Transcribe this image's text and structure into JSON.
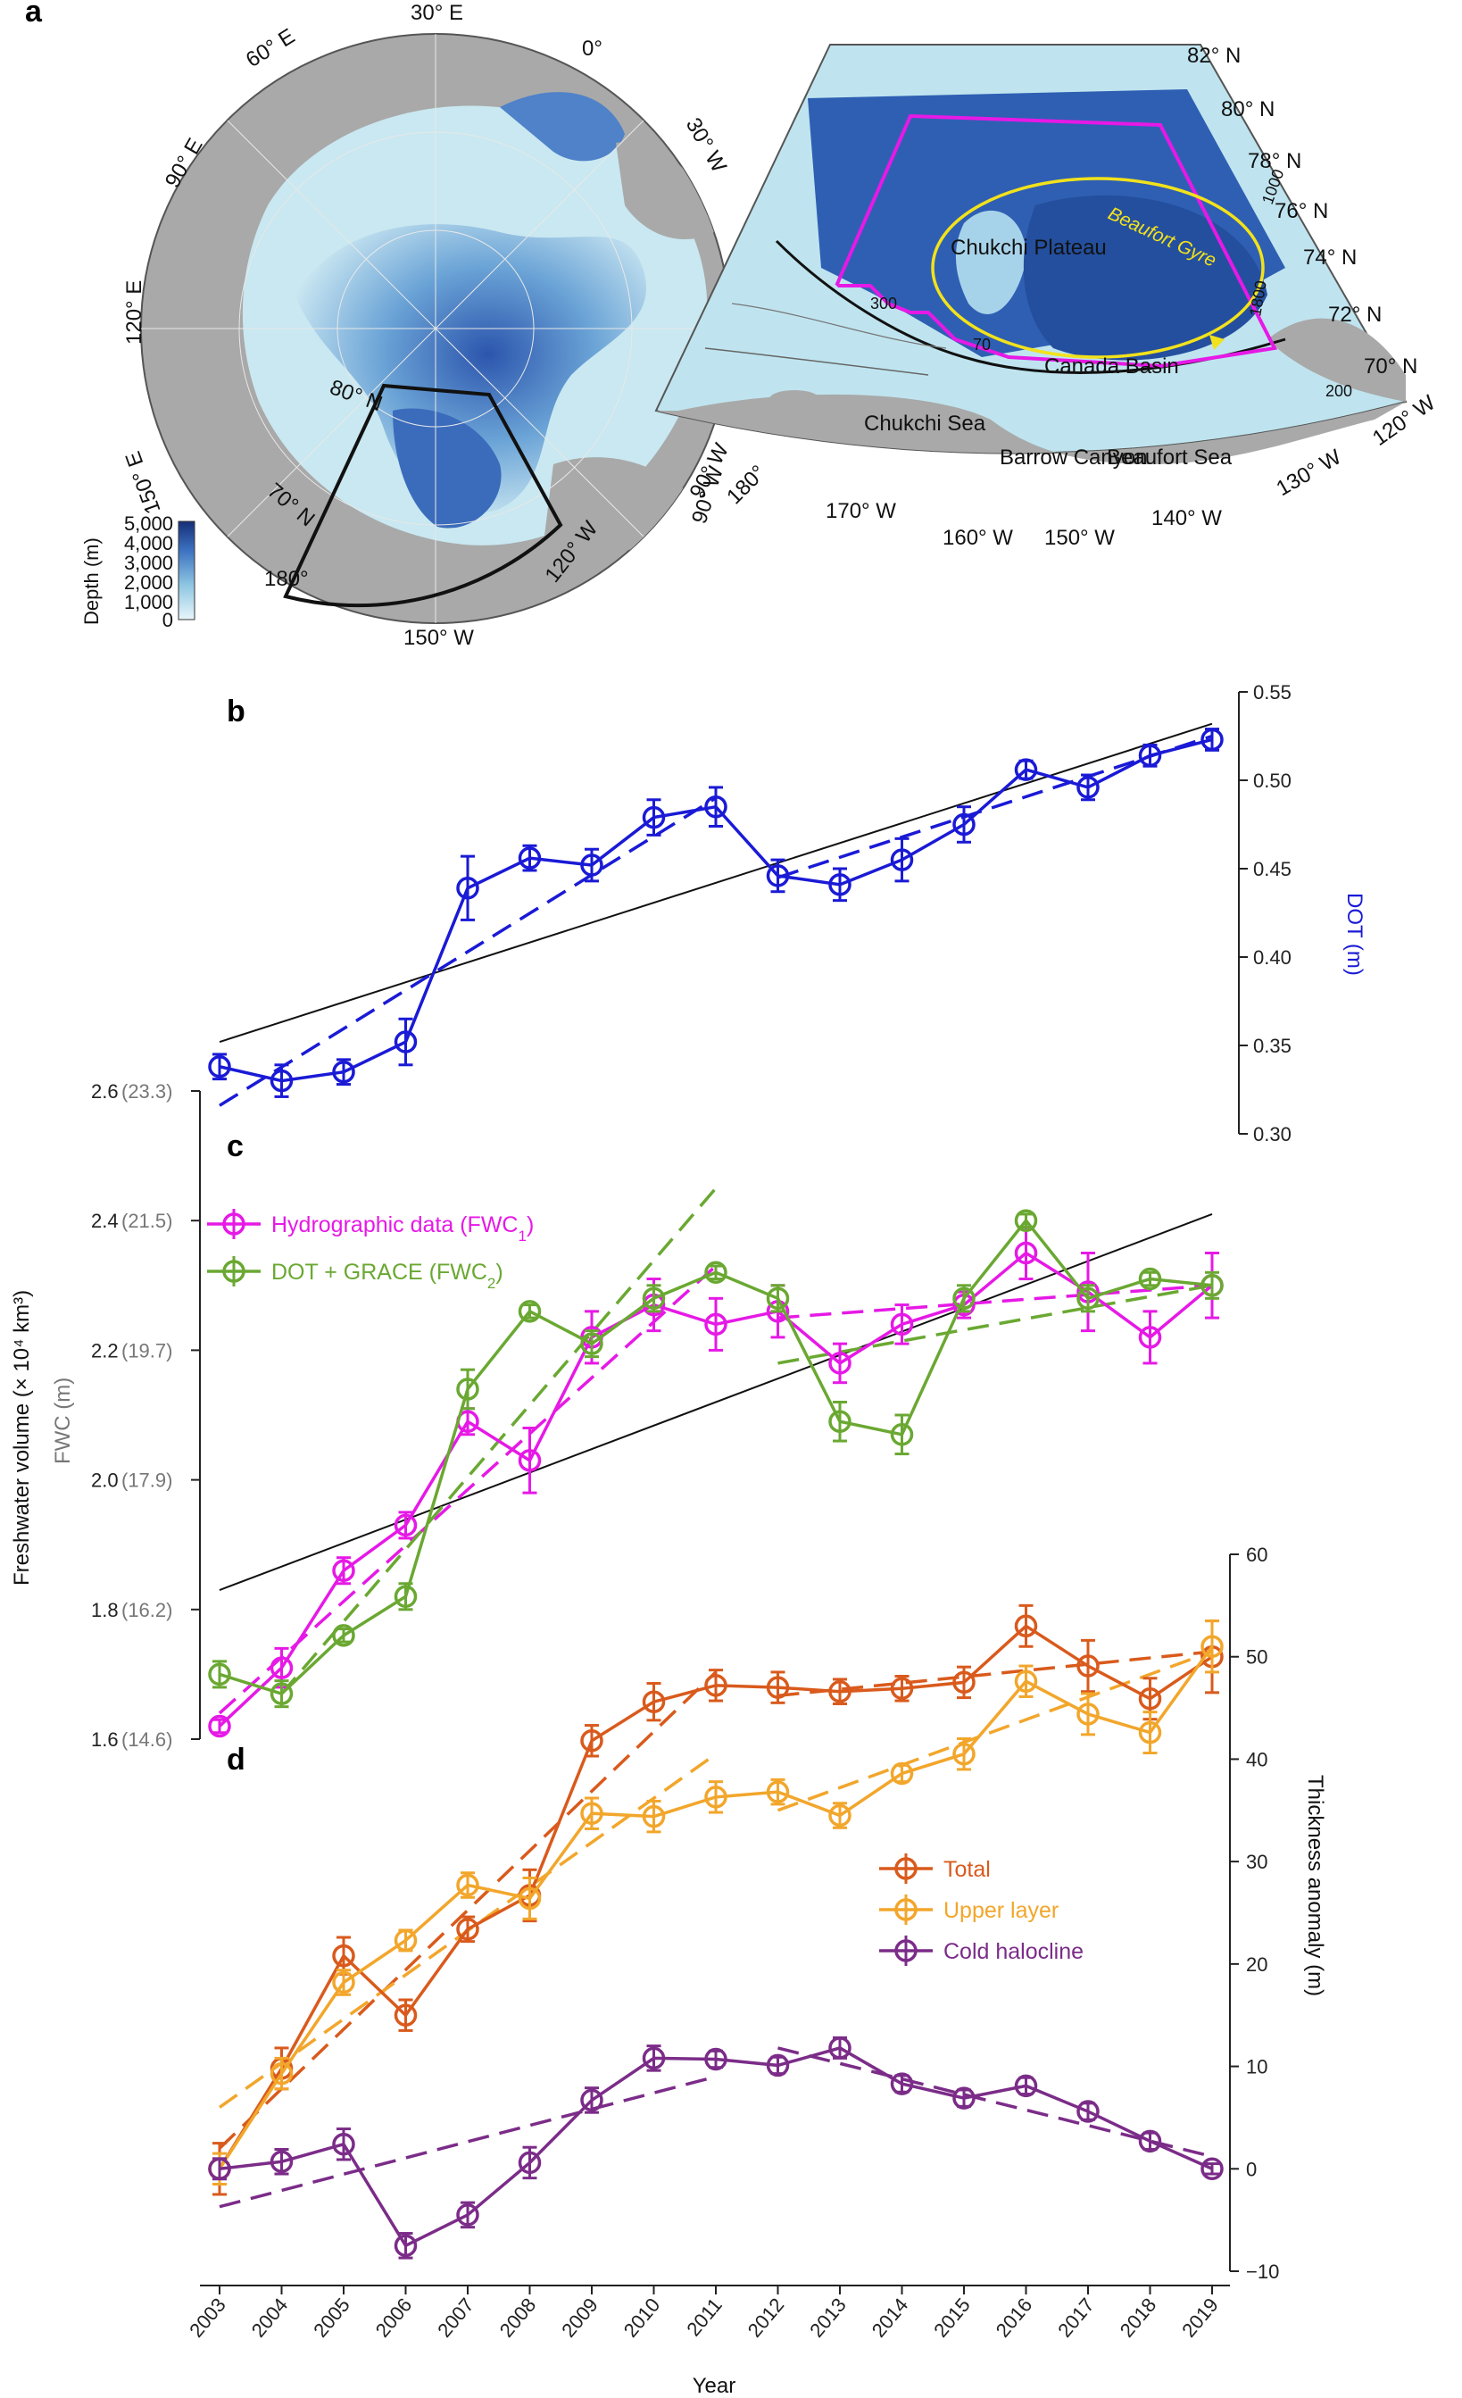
{
  "panel_a": {
    "label": "a",
    "polar_lon_labels": [
      "30° E",
      "0°",
      "60° E",
      "30° W",
      "90° E",
      "120° E",
      "150° E",
      "180°",
      "150° W",
      "120° W",
      "90° W"
    ],
    "polar_lat_labels": [
      "80° N",
      "70° N"
    ],
    "depth_colorbar": {
      "title": "Depth (m)",
      "ticks": [
        "5,000",
        "4,000",
        "3,000",
        "2,000",
        "1,000",
        "0"
      ]
    },
    "inset_lat_labels": [
      "82° N",
      "80° N",
      "78° N",
      "76° N",
      "74° N",
      "72° N",
      "70° N"
    ],
    "inset_lon_labels": [
      "90° W",
      "180°",
      "170° W",
      "160° W",
      "150° W",
      "140° W",
      "130° W",
      "120° W"
    ],
    "region_labels": [
      "Chukchi Plateau",
      "Beaufort Gyre",
      "Canada Basin",
      "Chukchi Sea",
      "Barrow Canyon",
      "Beaufort Sea"
    ],
    "contour_labels": [
      "300",
      "1000",
      "1800",
      "200",
      "70"
    ]
  },
  "chart_data": [
    {
      "type": "line",
      "panel": "b",
      "ylabel": "DOT (m)",
      "ylim": [
        0.3,
        0.55
      ],
      "yticks": [
        "0.30",
        "0.35",
        "0.40",
        "0.45",
        "0.50",
        "0.55"
      ],
      "x": [
        2003,
        2004,
        2005,
        2006,
        2007,
        2008,
        2009,
        2010,
        2011,
        2012,
        2013,
        2014,
        2015,
        2016,
        2017,
        2018,
        2019
      ],
      "series": [
        {
          "name": "DOT",
          "color": "#1a1ad6",
          "values": [
            0.338,
            0.33,
            0.335,
            0.352,
            0.439,
            0.456,
            0.452,
            0.479,
            0.485,
            0.446,
            0.441,
            0.455,
            0.475,
            0.506,
            0.496,
            0.514,
            0.523
          ],
          "errors": [
            0.007,
            0.009,
            0.007,
            0.013,
            0.018,
            0.007,
            0.009,
            0.01,
            0.011,
            0.009,
            0.009,
            0.012,
            0.01,
            0.005,
            0.007,
            0.006,
            0.006
          ]
        }
      ],
      "trend_overall": {
        "x": [
          2003,
          2019
        ],
        "y": [
          0.352,
          0.532
        ]
      },
      "trend_segments": [
        {
          "x": [
            2003,
            2011
          ],
          "y": [
            0.316,
            0.49
          ]
        },
        {
          "x": [
            2012,
            2019
          ],
          "y": [
            0.445,
            0.525
          ]
        }
      ]
    },
    {
      "type": "line",
      "panel": "c",
      "ylabel": "Freshwater volume (× 10⁴ km³)",
      "ylabel2": "FWC (m)",
      "ylim": [
        1.6,
        2.6
      ],
      "yticks": [
        "1.6",
        "1.8",
        "2.0",
        "2.2",
        "2.4",
        "2.6"
      ],
      "yticks_fwc": [
        "(14.6)",
        "(16.2)",
        "(17.9)",
        "(19.7)",
        "(21.5)",
        "(23.3)"
      ],
      "x": [
        2003,
        2004,
        2005,
        2006,
        2007,
        2008,
        2009,
        2010,
        2011,
        2012,
        2013,
        2014,
        2015,
        2016,
        2017,
        2018,
        2019
      ],
      "series": [
        {
          "name": "Hydrographic data (FWC1)",
          "color": "#e619e6",
          "values": [
            1.62,
            1.71,
            1.86,
            1.93,
            2.09,
            2.03,
            2.22,
            2.27,
            2.24,
            2.26,
            2.18,
            2.24,
            2.27,
            2.35,
            2.29,
            2.22,
            2.3
          ],
          "errors": [
            0.01,
            0.03,
            0.02,
            0.02,
            0.02,
            0.05,
            0.04,
            0.04,
            0.04,
            0.04,
            0.03,
            0.03,
            0.02,
            0.04,
            0.06,
            0.04,
            0.05
          ]
        },
        {
          "name": "DOT + GRACE (FWC2)",
          "color": "#6aa832",
          "values": [
            1.7,
            1.67,
            1.76,
            1.82,
            2.14,
            2.26,
            2.21,
            2.28,
            2.32,
            2.28,
            2.09,
            2.07,
            2.28,
            2.4,
            2.28,
            2.31,
            2.3
          ],
          "errors": [
            0.02,
            0.02,
            0.01,
            0.02,
            0.03,
            0.01,
            0.02,
            0.02,
            0.01,
            0.02,
            0.03,
            0.03,
            0.02,
            0.01,
            0.02,
            0.01,
            0.02
          ]
        }
      ],
      "trend_overall": {
        "x": [
          2003,
          2019
        ],
        "y": [
          1.83,
          2.41
        ]
      },
      "trend_segments": [
        {
          "color": "#e619e6",
          "x": [
            2003,
            2011
          ],
          "y": [
            1.64,
            2.33
          ]
        },
        {
          "color": "#e619e6",
          "x": [
            2012,
            2019
          ],
          "y": [
            2.25,
            2.3
          ]
        },
        {
          "color": "#6aa832",
          "x": [
            2004,
            2011
          ],
          "y": [
            1.67,
            2.45
          ]
        },
        {
          "color": "#6aa832",
          "x": [
            2012,
            2019
          ],
          "y": [
            2.18,
            2.3
          ]
        }
      ],
      "legend": {
        "position": "top-left"
      }
    },
    {
      "type": "line",
      "panel": "d",
      "ylabel": "Thickness anomaly (m)",
      "xlabel": "Year",
      "ylim": [
        -10,
        60
      ],
      "yticks": [
        "−10",
        "0",
        "10",
        "20",
        "30",
        "40",
        "50",
        "60"
      ],
      "x": [
        2003,
        2004,
        2005,
        2006,
        2007,
        2008,
        2009,
        2010,
        2011,
        2012,
        2013,
        2014,
        2015,
        2016,
        2017,
        2018,
        2019
      ],
      "series": [
        {
          "name": "Total",
          "color": "#d95a1c",
          "values": [
            0.0,
            9.8,
            20.8,
            15.0,
            23.4,
            26.7,
            41.8,
            45.6,
            47.2,
            47.0,
            46.6,
            46.9,
            47.5,
            53.0,
            49.1,
            45.9,
            50.0
          ],
          "errors": [
            2.5,
            2.0,
            1.8,
            1.5,
            1.2,
            2.5,
            1.5,
            1.8,
            1.5,
            1.5,
            1.2,
            1.2,
            1.5,
            2.0,
            2.5,
            2.0,
            3.5
          ]
        },
        {
          "name": "Upper layer",
          "color": "#f2a62b",
          "values": [
            0.0,
            9.3,
            18.2,
            22.3,
            27.7,
            26.4,
            34.7,
            34.4,
            36.3,
            36.8,
            34.5,
            38.6,
            40.5,
            47.6,
            44.4,
            42.6,
            51.0
          ],
          "errors": [
            1.5,
            1.5,
            1.2,
            1.0,
            1.2,
            2.0,
            1.5,
            1.5,
            1.5,
            1.2,
            1.2,
            0.8,
            1.5,
            1.5,
            2.0,
            2.0,
            2.5
          ]
        },
        {
          "name": "Cold halocline",
          "color": "#7b2c88",
          "values": [
            0.0,
            0.7,
            2.4,
            -7.5,
            -4.5,
            0.6,
            6.7,
            10.8,
            10.7,
            10.1,
            11.8,
            8.3,
            6.9,
            8.1,
            5.6,
            2.7,
            0.0
          ],
          "errors": [
            1.0,
            1.2,
            1.5,
            1.2,
            1.2,
            1.5,
            1.2,
            1.2,
            0.8,
            0.8,
            1.0,
            0.8,
            0.8,
            0.8,
            0.8,
            0.8,
            0.5
          ]
        }
      ],
      "trend_segments": [
        {
          "color": "#d95a1c",
          "x": [
            2003,
            2011
          ],
          "y": [
            2.0,
            48.5
          ]
        },
        {
          "color": "#d95a1c",
          "x": [
            2012,
            2019
          ],
          "y": [
            46.2,
            50.5
          ]
        },
        {
          "color": "#f2a62b",
          "x": [
            2003,
            2011
          ],
          "y": [
            6.0,
            40.5
          ]
        },
        {
          "color": "#f2a62b",
          "x": [
            2012,
            2019
          ],
          "y": [
            35.0,
            50.5
          ]
        },
        {
          "color": "#7b2c88",
          "x": [
            2003,
            2011
          ],
          "y": [
            -3.7,
            9.0
          ]
        },
        {
          "color": "#7b2c88",
          "x": [
            2012,
            2019
          ],
          "y": [
            11.8,
            1.2
          ]
        }
      ],
      "legend": {
        "position": "middle-right"
      }
    }
  ]
}
